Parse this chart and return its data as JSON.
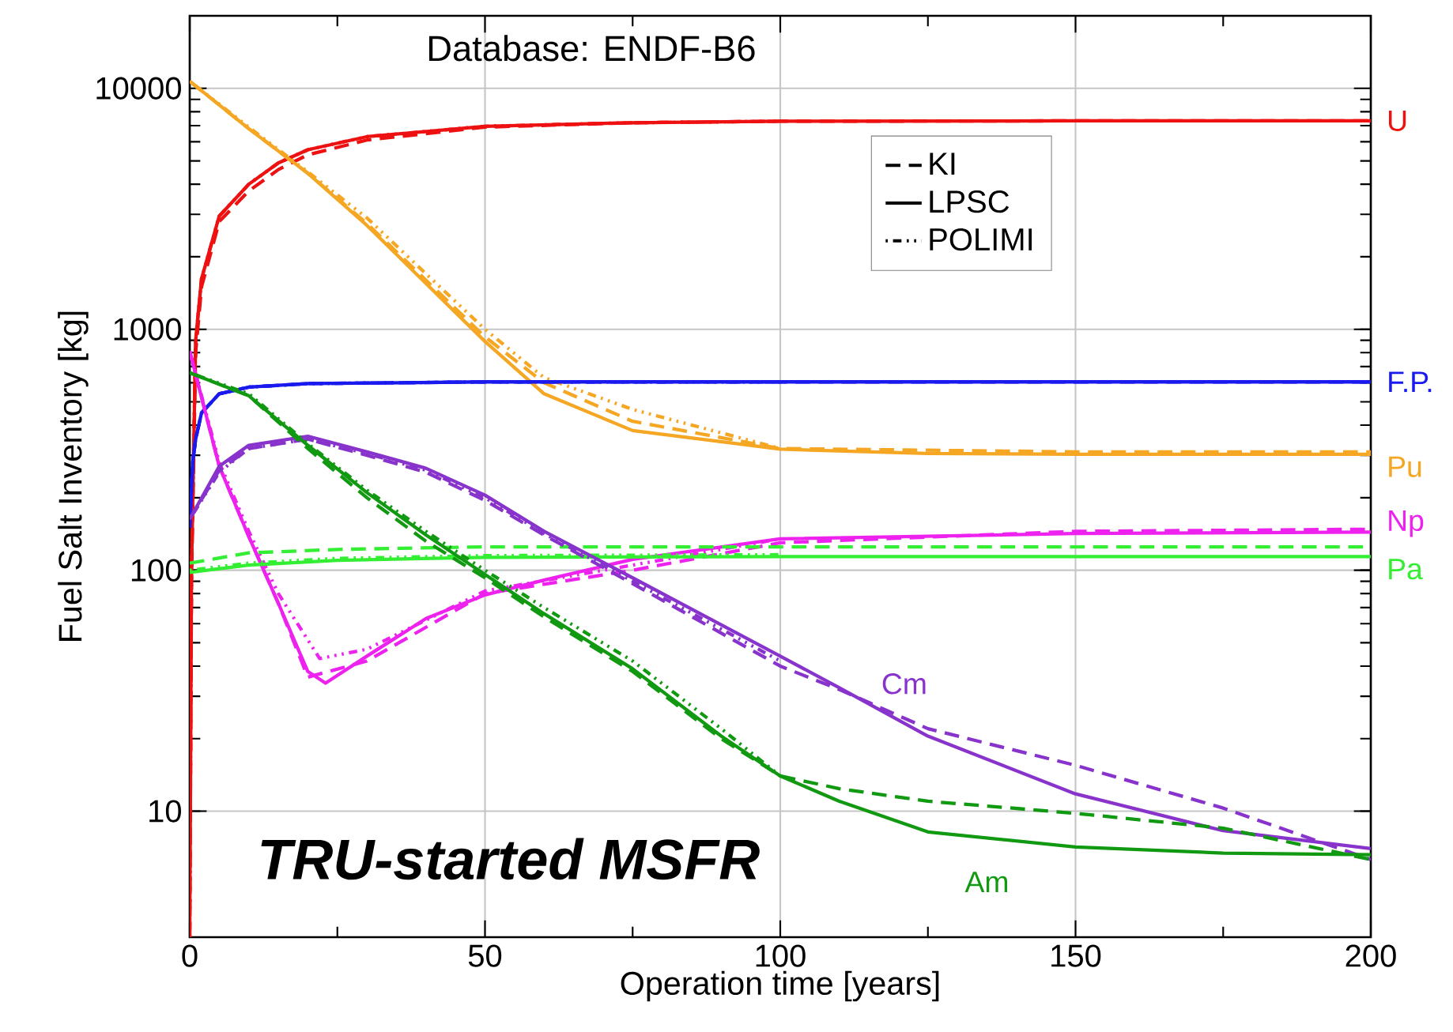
{
  "chart_data": {
    "type": "line",
    "xlabel": "Operation time [years]",
    "ylabel": "Fuel Salt Inventory [kg]",
    "xlim": [
      0,
      200
    ],
    "xticks": [
      0,
      50,
      100,
      150,
      200
    ],
    "ylim": [
      3,
      20000
    ],
    "yticks": [
      10,
      100,
      1000,
      10000
    ],
    "log": "y",
    "grid": true,
    "legend": "right",
    "series": [
      {
        "color": "#ee1111",
        "line_style": "dashed",
        "x": [
          0,
          0.3,
          1,
          2,
          5,
          10,
          15,
          20,
          30,
          50,
          75,
          100,
          150,
          200
        ],
        "values": [
          3,
          90,
          800,
          1500,
          2800,
          3750,
          4600,
          5300,
          6100,
          6900,
          7200,
          7300,
          7330,
          7330
        ]
      },
      {
        "name": "U",
        "color": "#ee1111",
        "line_style": "solid",
        "x": [
          0,
          0.3,
          1,
          2,
          5,
          10,
          15,
          20,
          30,
          50,
          75,
          100,
          150,
          200
        ],
        "values": [
          3,
          100,
          900,
          1620,
          2950,
          4000,
          4900,
          5560,
          6300,
          6960,
          7200,
          7300,
          7330,
          7330
        ]
      },
      {
        "color": "#ee1111",
        "line_style": "dotted",
        "x": [
          0,
          0.3,
          1,
          2,
          5,
          10,
          15,
          20,
          30,
          50,
          75,
          100
        ],
        "values": [
          3,
          100,
          900,
          1620,
          2950,
          4000,
          4900,
          5560,
          6300,
          6960,
          7200,
          7300
        ]
      },
      {
        "color": "#f5a623",
        "line_style": "dashed",
        "x": [
          0,
          10,
          20,
          30,
          40,
          50,
          60,
          75,
          100,
          150,
          200
        ],
        "values": [
          10700,
          6800,
          4440,
          2750,
          1600,
          930,
          600,
          415,
          320,
          310,
          310
        ]
      },
      {
        "name": "Pu",
        "color": "#f5a623",
        "line_style": "solid",
        "x": [
          0,
          10,
          20,
          30,
          40,
          50,
          60,
          75,
          100,
          125,
          150,
          200
        ],
        "values": [
          10700,
          6800,
          4440,
          2700,
          1550,
          890,
          540,
          380,
          318,
          305,
          303,
          303
        ]
      },
      {
        "color": "#f5a623",
        "line_style": "dotted",
        "x": [
          0,
          10,
          20,
          30,
          40,
          50,
          60,
          75,
          100
        ],
        "values": [
          10700,
          6900,
          4500,
          2900,
          1700,
          1000,
          630,
          465,
          320
        ]
      },
      {
        "color": "#1a1aee",
        "line_style": "dashed",
        "x": [
          0,
          0.5,
          1,
          2,
          5,
          10,
          20,
          50,
          100,
          200
        ],
        "values": [
          150,
          280,
          350,
          450,
          540,
          575,
          595,
          605,
          605,
          605
        ]
      },
      {
        "name": "F.P.",
        "color": "#1a1aee",
        "line_style": "solid",
        "x": [
          0,
          0.5,
          1,
          2,
          5,
          10,
          20,
          50,
          100,
          200
        ],
        "values": [
          150,
          280,
          350,
          450,
          540,
          575,
          595,
          605,
          605,
          605
        ]
      },
      {
        "color": "#1a1aee",
        "line_style": "dotted",
        "x": [
          0,
          0.5,
          1,
          2,
          5,
          10,
          20,
          50,
          100
        ],
        "values": [
          150,
          280,
          350,
          450,
          540,
          575,
          595,
          605,
          605
        ]
      },
      {
        "color": "#ee22ee",
        "line_style": "dashed",
        "x": [
          0,
          5,
          10,
          15,
          20,
          30,
          50,
          75,
          100,
          150,
          200
        ],
        "values": [
          810,
          270,
          138,
          73,
          36,
          42,
          80,
          100,
          130,
          145,
          148
        ]
      },
      {
        "name": "Np",
        "color": "#ee22ee",
        "line_style": "solid",
        "x": [
          0,
          5,
          10,
          15,
          20,
          23,
          30,
          40,
          50,
          60,
          75,
          100,
          150,
          200
        ],
        "values": [
          810,
          270,
          138,
          73,
          38,
          34,
          44,
          63,
          79,
          91,
          111,
          135,
          142,
          144
        ]
      },
      {
        "color": "#ee22ee",
        "line_style": "dotted",
        "x": [
          0,
          5,
          10,
          15,
          22,
          30,
          50,
          75,
          100
        ],
        "values": [
          810,
          280,
          145,
          80,
          43,
          47,
          82,
          105,
          135
        ]
      },
      {
        "color": "#33ee33",
        "line_style": "dashed",
        "x": [
          0,
          10,
          25,
          50,
          100,
          200
        ],
        "values": [
          107,
          118,
          122,
          125,
          125,
          125
        ]
      },
      {
        "name": "Pa",
        "color": "#33ee33",
        "line_style": "solid",
        "x": [
          0,
          10,
          25,
          50,
          100,
          200
        ],
        "values": [
          98,
          105,
          110,
          113,
          114,
          114
        ]
      },
      {
        "color": "#33ee33",
        "line_style": "dotted",
        "x": [
          0,
          10,
          25,
          50,
          100
        ],
        "values": [
          100,
          107,
          112,
          115,
          116
        ]
      },
      {
        "color": "#8833cc",
        "line_style": "dashed",
        "x": [
          0,
          5,
          10,
          20,
          30,
          40,
          50,
          60,
          75,
          100,
          110,
          125,
          150,
          175,
          200
        ],
        "values": [
          163,
          260,
          320,
          350,
          300,
          255,
          195,
          140,
          88,
          40,
          32,
          22,
          15.5,
          10.3,
          6.3
        ]
      },
      {
        "name": "Cm",
        "color": "#8833cc",
        "line_style": "solid",
        "x": [
          0,
          5,
          10,
          20,
          30,
          40,
          50,
          60,
          75,
          100,
          110,
          125,
          150,
          175,
          200
        ],
        "values": [
          163,
          270,
          330,
          360,
          310,
          265,
          205,
          145,
          93,
          44,
          32.5,
          20.5,
          11.8,
          8.3,
          7
        ]
      },
      {
        "color": "#8833cc",
        "line_style": "dotted",
        "x": [
          0,
          5,
          10,
          20,
          30,
          40,
          50,
          60,
          75,
          100
        ],
        "values": [
          163,
          255,
          320,
          350,
          305,
          260,
          200,
          142,
          90,
          42
        ]
      },
      {
        "color": "#119911",
        "line_style": "dashed",
        "x": [
          0,
          10,
          20,
          30,
          40,
          50,
          60,
          75,
          90,
          100,
          110,
          125,
          150,
          175,
          200
        ],
        "values": [
          660,
          530,
          320,
          200,
          132,
          93,
          64,
          38,
          20,
          14,
          12.4,
          11,
          9.8,
          8.5,
          6.3
        ]
      },
      {
        "name": "Am",
        "color": "#119911",
        "line_style": "solid",
        "x": [
          0,
          10,
          20,
          30,
          40,
          50,
          60,
          75,
          90,
          100,
          110,
          125,
          150,
          175,
          200
        ],
        "values": [
          660,
          530,
          330,
          210,
          140,
          96,
          66,
          39,
          20.5,
          14,
          11,
          8.2,
          7.1,
          6.7,
          6.6
        ]
      },
      {
        "color": "#119911",
        "line_style": "dotted",
        "x": [
          0,
          10,
          20,
          30,
          40,
          50,
          60,
          75,
          90,
          100
        ],
        "values": [
          660,
          540,
          335,
          215,
          145,
          100,
          70,
          42,
          22,
          14
        ]
      }
    ],
    "annotations": [
      "Database: ENDF-B6",
      "TRU-started MSFR",
      "KI",
      "LPSC",
      "POLIMI"
    ]
  }
}
